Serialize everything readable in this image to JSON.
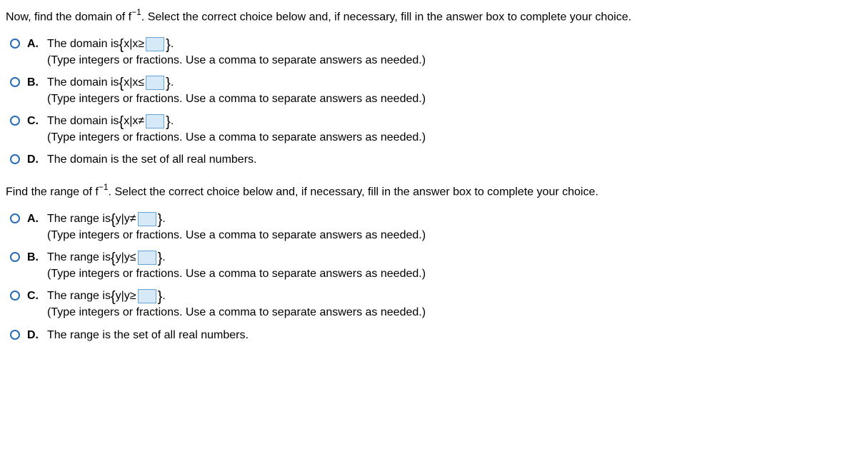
{
  "q1": {
    "prompt_before": "Now, find the domain of f",
    "exp": "−1",
    "prompt_after": ". Select the correct choice below and, if necessary, fill in the answer box to complete your choice.",
    "choices": {
      "A": {
        "label": "A.",
        "pre": "The domain is ",
        "setvar": "x|x",
        "rel": "≥",
        "post": " .",
        "hint": "(Type integers or fractions. Use a comma to separate answers as needed.)"
      },
      "B": {
        "label": "B.",
        "pre": "The domain is ",
        "setvar": "x|x",
        "rel": "≤",
        "post": " .",
        "hint": "(Type integers or fractions. Use a comma to separate answers as needed.)"
      },
      "C": {
        "label": "C.",
        "pre": "The domain is ",
        "setvar": "x|x",
        "rel": "≠",
        "post": " .",
        "hint": "(Type integers or fractions. Use a comma to separate answers as needed.)"
      },
      "D": {
        "label": "D.",
        "text": "The domain is the set of all real numbers."
      }
    }
  },
  "q2": {
    "prompt_before": "Find the range of f",
    "exp": "−1",
    "prompt_after": ". Select the correct choice below and, if necessary, fill in the answer box to complete your choice.",
    "choices": {
      "A": {
        "label": "A.",
        "pre": "The range is ",
        "setvar": "y|y",
        "rel": "≠",
        "post": " .",
        "hint": "(Type integers or fractions. Use a comma to separate answers as needed.)"
      },
      "B": {
        "label": "B.",
        "pre": "The range is ",
        "setvar": "y|y",
        "rel": "≤",
        "post": " .",
        "hint": "(Type integers or fractions. Use a comma to separate answers as needed.)"
      },
      "C": {
        "label": "C.",
        "pre": "The range is ",
        "setvar": "y|y",
        "rel": "≥",
        "post": " .",
        "hint": "(Type integers or fractions. Use a comma to separate answers as needed.)"
      },
      "D": {
        "label": "D.",
        "text": "The range is the set of all real numbers."
      }
    }
  }
}
